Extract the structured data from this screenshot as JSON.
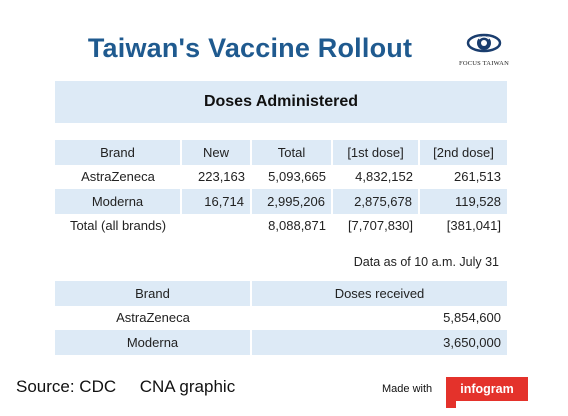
{
  "title": "Taiwan's Vaccine Rollout",
  "logo_text": "FOCUS TAIWAN",
  "subtitle": "Doses Administered",
  "doses_table": {
    "headers": [
      "Brand",
      "New",
      "Total",
      "[1st dose]",
      "[2nd dose]"
    ],
    "rows": [
      [
        "AstraZeneca",
        "223,163",
        "5,093,665",
        "4,832,152",
        "261,513"
      ],
      [
        "Moderna",
        "16,714",
        "2,995,206",
        "2,875,678",
        "119,528"
      ],
      [
        "Total (all brands)",
        "",
        "8,088,871",
        "[7,707,830]",
        "[381,041]"
      ]
    ]
  },
  "note": "Data as of 10 a.m. July 31",
  "received_table": {
    "headers": [
      "Brand",
      "Doses received"
    ],
    "rows": [
      [
        "AstraZeneca",
        "5,854,600"
      ],
      [
        "Moderna",
        "3,650,000"
      ]
    ]
  },
  "source": "Source: CDC     CNA graphic",
  "made_with": "Made with",
  "brand_badge": "infogram",
  "colors": {
    "title": "#1f5a8f",
    "shade": "#ddeaf6",
    "badge": "#e4322b"
  }
}
